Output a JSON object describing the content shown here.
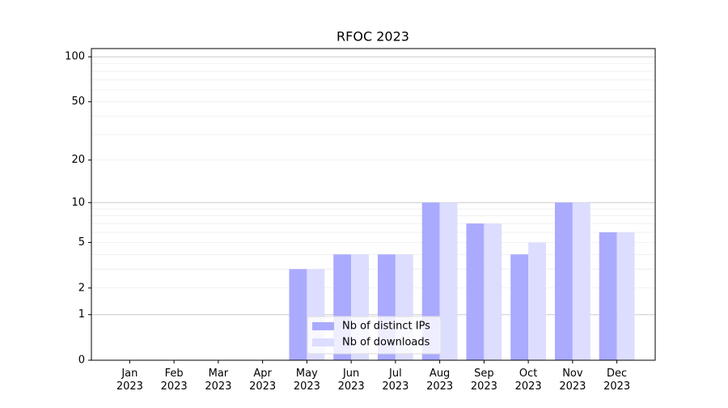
{
  "chart_data": {
    "type": "bar",
    "title": "RFOC 2023",
    "categories": [
      "Jan\n2023",
      "Feb\n2023",
      "Mar\n2023",
      "Apr\n2023",
      "May\n2023",
      "Jun\n2023",
      "Jul\n2023",
      "Aug\n2023",
      "Sep\n2023",
      "Oct\n2023",
      "Nov\n2023",
      "Dec\n2023"
    ],
    "series": [
      {
        "name": "Nb of distinct IPs",
        "color": "#aaaaff",
        "values": [
          0,
          0,
          0,
          0,
          3,
          4,
          4,
          10,
          7,
          4,
          10,
          6
        ]
      },
      {
        "name": "Nb of downloads",
        "color": "#ddddff",
        "values": [
          0,
          0,
          0,
          0,
          3,
          4,
          4,
          10,
          7,
          5,
          10,
          6
        ]
      }
    ],
    "yscale": "log1p",
    "ylim": [
      0,
      113.5
    ],
    "yticks": [
      0,
      1,
      2,
      5,
      10,
      20,
      50,
      100
    ],
    "ygrid_major": [
      1,
      10,
      100
    ],
    "ygrid_minor": [
      2,
      3,
      4,
      5,
      6,
      7,
      8,
      9,
      20,
      30,
      40,
      50,
      60,
      70,
      80,
      90
    ],
    "legend": "lower center"
  }
}
